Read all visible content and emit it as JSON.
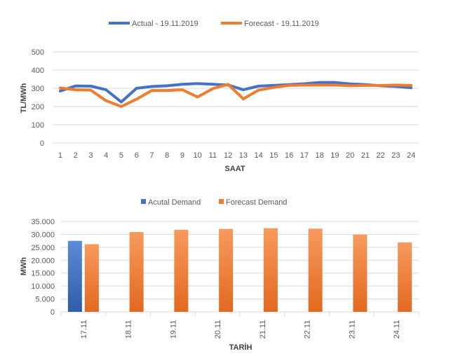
{
  "chart_data": [
    {
      "type": "line",
      "title": "",
      "xlabel": "SAAT",
      "ylabel": "TL/MWh",
      "ylim": [
        0,
        500
      ],
      "yticks": [
        "0",
        "100",
        "200",
        "300",
        "400",
        "500"
      ],
      "categories": [
        "1",
        "2",
        "3",
        "4",
        "5",
        "6",
        "7",
        "8",
        "9",
        "10",
        "11",
        "12",
        "13",
        "14",
        "15",
        "16",
        "17",
        "18",
        "19",
        "20",
        "21",
        "22",
        "23",
        "24"
      ],
      "grid": true,
      "legend_position": "top",
      "series": [
        {
          "name": "Actual - 19.11.2019",
          "color": "#4472c4",
          "values": [
            285,
            313,
            312,
            292,
            225,
            300,
            310,
            314,
            322,
            326,
            322,
            318,
            292,
            312,
            316,
            320,
            325,
            332,
            332,
            324,
            320,
            314,
            310,
            303
          ]
        },
        {
          "name": "Forecast - 19.11.2019",
          "color": "#ed7d31",
          "values": [
            302,
            292,
            290,
            232,
            200,
            240,
            288,
            288,
            292,
            252,
            298,
            322,
            242,
            290,
            305,
            316,
            318,
            318,
            318,
            314,
            316,
            316,
            318,
            316
          ]
        }
      ]
    },
    {
      "type": "bar",
      "title": "",
      "xlabel": "TARİH",
      "ylabel": "MWh",
      "ylim": [
        0,
        35000
      ],
      "yticks": [
        "0",
        "5.000",
        "10.000",
        "15.000",
        "20.000",
        "25.000",
        "30.000",
        "35.000"
      ],
      "categories": [
        "17.11",
        "18.11",
        "19.11",
        "20.11",
        "21.11",
        "22.11",
        "23.11",
        "24.11"
      ],
      "grid": true,
      "legend_position": "top",
      "series": [
        {
          "name": "Acutal Demand",
          "color": "#4472c4",
          "values": [
            27500,
            null,
            null,
            null,
            null,
            null,
            null,
            null
          ]
        },
        {
          "name": "Forecast Demand",
          "color": "#ed7d31",
          "values": [
            26200,
            30900,
            31800,
            32100,
            32400,
            32200,
            29900,
            26900
          ]
        }
      ]
    }
  ]
}
